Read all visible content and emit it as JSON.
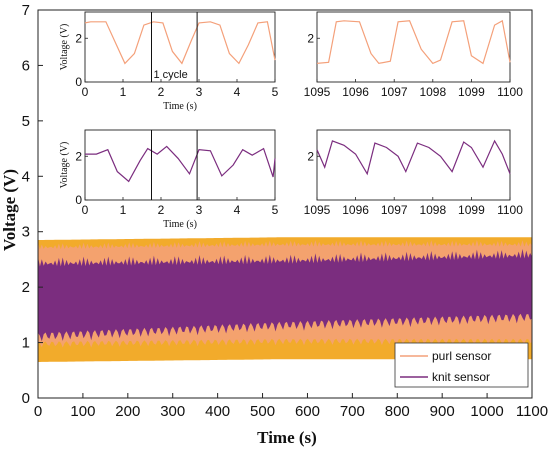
{
  "chart_data": {
    "type": "area",
    "main": {
      "xlabel": "Time (s)",
      "ylabel": "Voltage (V)",
      "xlim": [
        0,
        1100
      ],
      "ylim": [
        0,
        7
      ],
      "xticks": [
        "0",
        "100",
        "200",
        "300",
        "400",
        "500",
        "600",
        "700",
        "800",
        "900",
        "1000",
        "1100"
      ],
      "yticks": [
        "0",
        "1",
        "2",
        "3",
        "4",
        "5",
        "6",
        "7"
      ],
      "series": [
        {
          "name": "purl sensor",
          "color": "#f4a07a",
          "band_color": "#f2ab2b",
          "envelope": {
            "x": [
              0,
              550,
              1100
            ],
            "max": [
              2.85,
              2.9,
              2.9
            ],
            "min": [
              0.65,
              0.7,
              0.7
            ]
          }
        },
        {
          "name": "knit sensor",
          "color": "#7b2d7f",
          "envelope": {
            "x": [
              0,
              550,
              1100
            ],
            "max": [
              2.55,
              2.6,
              2.7
            ],
            "min": [
              1.0,
              1.2,
              1.35
            ]
          }
        }
      ],
      "legend_position": "bottom-right"
    },
    "insets": [
      {
        "id": "purl-start",
        "series": "purl sensor",
        "xlim": [
          0,
          5
        ],
        "ylim": [
          0,
          3.2
        ],
        "xticks": [
          "0",
          "1",
          "2",
          "3",
          "4",
          "5"
        ],
        "yticks": [
          "0",
          "2"
        ],
        "xlabel": "Time (s)",
        "ylabel": "Voltage (V)",
        "annotation": "1 cycle",
        "markers_x": [
          1.75,
          2.95
        ],
        "x": [
          0,
          0.15,
          0.55,
          0.8,
          1.05,
          1.3,
          1.55,
          1.8,
          2.05,
          2.3,
          2.55,
          2.8,
          3.0,
          3.3,
          3.55,
          3.8,
          4.05,
          4.3,
          4.55,
          4.8,
          5.0
        ],
        "y": [
          2.7,
          2.75,
          2.75,
          1.8,
          0.85,
          1.3,
          2.6,
          2.75,
          2.7,
          1.4,
          0.85,
          1.9,
          2.7,
          2.75,
          2.6,
          1.3,
          0.85,
          1.7,
          2.7,
          2.75,
          1.0
        ]
      },
      {
        "id": "purl-end",
        "series": "purl sensor",
        "xlim": [
          1095,
          1100
        ],
        "ylim": [
          0,
          3.2
        ],
        "xticks": [
          "1095",
          "1096",
          "1097",
          "1098",
          "1099",
          "1100"
        ],
        "yticks": [
          "2"
        ],
        "x": [
          1095,
          1095.3,
          1095.5,
          1095.7,
          1096.1,
          1096.4,
          1096.6,
          1096.9,
          1097.1,
          1097.4,
          1097.7,
          1098.0,
          1098.2,
          1098.5,
          1098.8,
          1099.0,
          1099.3,
          1099.6,
          1099.8,
          1100
        ],
        "y": [
          0.85,
          0.9,
          2.75,
          2.8,
          2.75,
          1.3,
          0.85,
          0.95,
          2.75,
          2.8,
          1.5,
          0.85,
          1.0,
          2.75,
          2.8,
          1.2,
          0.85,
          2.6,
          2.8,
          0.9
        ]
      },
      {
        "id": "knit-start",
        "series": "knit sensor",
        "xlim": [
          0,
          5
        ],
        "ylim": [
          0,
          3.2
        ],
        "xticks": [
          "0",
          "1",
          "2",
          "3",
          "4",
          "5"
        ],
        "yticks": [
          "0",
          "2"
        ],
        "xlabel": "Time (s)",
        "ylabel": "Voltage (V)",
        "markers_x": [
          1.75,
          2.95
        ],
        "x": [
          0,
          0.3,
          0.6,
          0.85,
          1.15,
          1.45,
          1.65,
          1.9,
          2.15,
          2.45,
          2.75,
          3.0,
          3.3,
          3.6,
          3.9,
          4.15,
          4.4,
          4.7,
          4.95,
          5.0
        ],
        "y": [
          2.1,
          2.1,
          2.3,
          1.3,
          0.85,
          1.8,
          2.35,
          2.1,
          2.45,
          1.9,
          1.2,
          2.3,
          2.25,
          1.1,
          1.6,
          2.3,
          2.05,
          2.35,
          1.05,
          1.9
        ]
      },
      {
        "id": "knit-end",
        "series": "knit sensor",
        "xlim": [
          1095,
          1100
        ],
        "ylim": [
          0,
          3.2
        ],
        "xticks": [
          "1095",
          "1096",
          "1097",
          "1098",
          "1099",
          "1100"
        ],
        "yticks": [
          "2"
        ],
        "x": [
          1095,
          1095.2,
          1095.4,
          1095.7,
          1096.0,
          1096.3,
          1096.5,
          1096.8,
          1097.1,
          1097.3,
          1097.6,
          1097.9,
          1098.2,
          1098.5,
          1098.8,
          1099.0,
          1099.3,
          1099.6,
          1099.8,
          1100
        ],
        "y": [
          2.3,
          1.5,
          2.7,
          2.5,
          2.1,
          1.2,
          2.6,
          2.4,
          2.0,
          1.3,
          2.6,
          2.4,
          2.0,
          1.3,
          2.65,
          2.4,
          1.5,
          2.7,
          2.1,
          1.2
        ]
      }
    ]
  }
}
